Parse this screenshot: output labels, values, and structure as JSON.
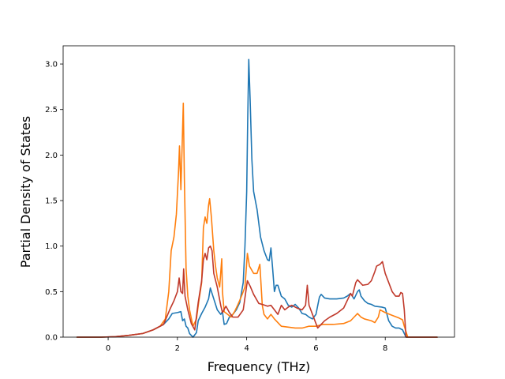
{
  "chart_data": {
    "type": "line",
    "title": "",
    "xlabel": "Frequency (THz)",
    "ylabel": "Partial Density of States",
    "xlim": [
      -1.3,
      10.0
    ],
    "ylim": [
      0.0,
      3.2
    ],
    "xticks": [
      0,
      2,
      4,
      6,
      8
    ],
    "yticks": [
      0.0,
      0.5,
      1.0,
      1.5,
      2.0,
      2.5,
      3.0
    ],
    "xtick_labels": [
      "0",
      "2",
      "4",
      "6",
      "8"
    ],
    "ytick_labels": [
      "0.0",
      "0.5",
      "1.0",
      "1.5",
      "2.0",
      "2.5",
      "3.0"
    ],
    "grid": false,
    "legend": "none",
    "series": [
      {
        "color": "#1f77b4",
        "points": [
          [
            -0.9,
            0.0
          ],
          [
            -0.2,
            0.0
          ],
          [
            0.2,
            0.005
          ],
          [
            0.6,
            0.02
          ],
          [
            1.0,
            0.04
          ],
          [
            1.3,
            0.08
          ],
          [
            1.6,
            0.14
          ],
          [
            1.75,
            0.2
          ],
          [
            1.85,
            0.26
          ],
          [
            2.0,
            0.27
          ],
          [
            2.1,
            0.28
          ],
          [
            2.15,
            0.18
          ],
          [
            2.2,
            0.2
          ],
          [
            2.25,
            0.12
          ],
          [
            2.3,
            0.1
          ],
          [
            2.35,
            0.04
          ],
          [
            2.45,
            0.0
          ],
          [
            2.55,
            0.05
          ],
          [
            2.6,
            0.18
          ],
          [
            2.7,
            0.26
          ],
          [
            2.8,
            0.33
          ],
          [
            2.9,
            0.42
          ],
          [
            2.95,
            0.54
          ],
          [
            3.05,
            0.42
          ],
          [
            3.15,
            0.3
          ],
          [
            3.25,
            0.25
          ],
          [
            3.3,
            0.28
          ],
          [
            3.35,
            0.14
          ],
          [
            3.42,
            0.15
          ],
          [
            3.5,
            0.22
          ],
          [
            3.6,
            0.25
          ],
          [
            3.7,
            0.3
          ],
          [
            3.8,
            0.38
          ],
          [
            3.9,
            0.6
          ],
          [
            3.95,
            1.0
          ],
          [
            4.0,
            1.6
          ],
          [
            4.03,
            2.4
          ],
          [
            4.06,
            3.05
          ],
          [
            4.1,
            2.6
          ],
          [
            4.15,
            1.95
          ],
          [
            4.2,
            1.6
          ],
          [
            4.3,
            1.4
          ],
          [
            4.4,
            1.1
          ],
          [
            4.5,
            0.95
          ],
          [
            4.6,
            0.85
          ],
          [
            4.65,
            0.84
          ],
          [
            4.7,
            0.98
          ],
          [
            4.75,
            0.75
          ],
          [
            4.8,
            0.5
          ],
          [
            4.85,
            0.57
          ],
          [
            4.9,
            0.57
          ],
          [
            5.0,
            0.45
          ],
          [
            5.1,
            0.42
          ],
          [
            5.2,
            0.35
          ],
          [
            5.3,
            0.33
          ],
          [
            5.4,
            0.36
          ],
          [
            5.5,
            0.32
          ],
          [
            5.6,
            0.26
          ],
          [
            5.7,
            0.25
          ],
          [
            5.8,
            0.22
          ],
          [
            5.9,
            0.2
          ],
          [
            6.0,
            0.25
          ],
          [
            6.1,
            0.44
          ],
          [
            6.15,
            0.47
          ],
          [
            6.25,
            0.43
          ],
          [
            6.4,
            0.42
          ],
          [
            6.6,
            0.42
          ],
          [
            6.8,
            0.43
          ],
          [
            6.9,
            0.45
          ],
          [
            7.0,
            0.48
          ],
          [
            7.1,
            0.42
          ],
          [
            7.2,
            0.5
          ],
          [
            7.25,
            0.52
          ],
          [
            7.3,
            0.45
          ],
          [
            7.4,
            0.4
          ],
          [
            7.5,
            0.37
          ],
          [
            7.6,
            0.36
          ],
          [
            7.7,
            0.34
          ],
          [
            7.9,
            0.33
          ],
          [
            8.0,
            0.32
          ],
          [
            8.1,
            0.18
          ],
          [
            8.2,
            0.12
          ],
          [
            8.3,
            0.1
          ],
          [
            8.4,
            0.1
          ],
          [
            8.5,
            0.08
          ],
          [
            8.6,
            0.0
          ],
          [
            9.5,
            0.0
          ]
        ]
      },
      {
        "color": "#ff7f0e",
        "points": [
          [
            -0.9,
            0.0
          ],
          [
            -0.2,
            0.0
          ],
          [
            0.2,
            0.005
          ],
          [
            0.6,
            0.02
          ],
          [
            1.0,
            0.04
          ],
          [
            1.3,
            0.08
          ],
          [
            1.5,
            0.12
          ],
          [
            1.65,
            0.2
          ],
          [
            1.75,
            0.5
          ],
          [
            1.82,
            0.95
          ],
          [
            1.9,
            1.1
          ],
          [
            1.97,
            1.35
          ],
          [
            2.03,
            1.8
          ],
          [
            2.06,
            2.1
          ],
          [
            2.1,
            1.62
          ],
          [
            2.14,
            2.15
          ],
          [
            2.17,
            2.57
          ],
          [
            2.2,
            1.75
          ],
          [
            2.25,
            0.75
          ],
          [
            2.3,
            0.45
          ],
          [
            2.35,
            0.3
          ],
          [
            2.45,
            0.12
          ],
          [
            2.55,
            0.2
          ],
          [
            2.62,
            0.4
          ],
          [
            2.7,
            0.6
          ],
          [
            2.75,
            1.2
          ],
          [
            2.8,
            1.32
          ],
          [
            2.85,
            1.25
          ],
          [
            2.9,
            1.45
          ],
          [
            2.93,
            1.52
          ],
          [
            2.98,
            1.32
          ],
          [
            3.05,
            0.95
          ],
          [
            3.1,
            0.78
          ],
          [
            3.15,
            0.65
          ],
          [
            3.22,
            0.55
          ],
          [
            3.28,
            0.86
          ],
          [
            3.3,
            0.5
          ],
          [
            3.35,
            0.28
          ],
          [
            3.45,
            0.25
          ],
          [
            3.55,
            0.22
          ],
          [
            3.65,
            0.28
          ],
          [
            3.75,
            0.36
          ],
          [
            3.85,
            0.45
          ],
          [
            3.95,
            0.55
          ],
          [
            4.02,
            0.92
          ],
          [
            4.08,
            0.78
          ],
          [
            4.2,
            0.7
          ],
          [
            4.3,
            0.7
          ],
          [
            4.38,
            0.8
          ],
          [
            4.45,
            0.35
          ],
          [
            4.5,
            0.25
          ],
          [
            4.6,
            0.2
          ],
          [
            4.7,
            0.25
          ],
          [
            4.8,
            0.2
          ],
          [
            4.9,
            0.16
          ],
          [
            5.0,
            0.12
          ],
          [
            5.2,
            0.11
          ],
          [
            5.4,
            0.1
          ],
          [
            5.6,
            0.1
          ],
          [
            5.8,
            0.12
          ],
          [
            6.0,
            0.12
          ],
          [
            6.2,
            0.14
          ],
          [
            6.5,
            0.14
          ],
          [
            6.8,
            0.15
          ],
          [
            7.0,
            0.18
          ],
          [
            7.1,
            0.22
          ],
          [
            7.2,
            0.26
          ],
          [
            7.3,
            0.22
          ],
          [
            7.4,
            0.2
          ],
          [
            7.6,
            0.18
          ],
          [
            7.7,
            0.16
          ],
          [
            7.8,
            0.22
          ],
          [
            7.85,
            0.3
          ],
          [
            8.0,
            0.27
          ],
          [
            8.2,
            0.24
          ],
          [
            8.4,
            0.21
          ],
          [
            8.5,
            0.19
          ],
          [
            8.55,
            0.12
          ],
          [
            8.65,
            0.0
          ],
          [
            9.5,
            0.0
          ]
        ]
      },
      {
        "color": "#c0392b",
        "points": [
          [
            -0.9,
            0.0
          ],
          [
            -0.2,
            0.0
          ],
          [
            0.2,
            0.005
          ],
          [
            0.6,
            0.02
          ],
          [
            1.0,
            0.04
          ],
          [
            1.3,
            0.08
          ],
          [
            1.6,
            0.14
          ],
          [
            1.8,
            0.32
          ],
          [
            1.9,
            0.4
          ],
          [
            2.0,
            0.5
          ],
          [
            2.05,
            0.65
          ],
          [
            2.1,
            0.5
          ],
          [
            2.15,
            0.48
          ],
          [
            2.18,
            0.75
          ],
          [
            2.22,
            0.45
          ],
          [
            2.3,
            0.3
          ],
          [
            2.4,
            0.15
          ],
          [
            2.5,
            0.08
          ],
          [
            2.6,
            0.38
          ],
          [
            2.7,
            0.62
          ],
          [
            2.75,
            0.85
          ],
          [
            2.8,
            0.92
          ],
          [
            2.85,
            0.85
          ],
          [
            2.9,
            0.98
          ],
          [
            2.95,
            1.0
          ],
          [
            3.0,
            0.95
          ],
          [
            3.05,
            0.7
          ],
          [
            3.15,
            0.55
          ],
          [
            3.25,
            0.35
          ],
          [
            3.3,
            0.27
          ],
          [
            3.4,
            0.34
          ],
          [
            3.5,
            0.27
          ],
          [
            3.6,
            0.22
          ],
          [
            3.75,
            0.22
          ],
          [
            3.9,
            0.3
          ],
          [
            4.02,
            0.62
          ],
          [
            4.1,
            0.56
          ],
          [
            4.2,
            0.47
          ],
          [
            4.35,
            0.37
          ],
          [
            4.45,
            0.36
          ],
          [
            4.6,
            0.34
          ],
          [
            4.7,
            0.35
          ],
          [
            4.8,
            0.3
          ],
          [
            4.9,
            0.25
          ],
          [
            5.0,
            0.35
          ],
          [
            5.1,
            0.3
          ],
          [
            5.2,
            0.33
          ],
          [
            5.3,
            0.35
          ],
          [
            5.45,
            0.32
          ],
          [
            5.6,
            0.3
          ],
          [
            5.7,
            0.35
          ],
          [
            5.75,
            0.57
          ],
          [
            5.8,
            0.35
          ],
          [
            5.9,
            0.25
          ],
          [
            6.0,
            0.15
          ],
          [
            6.05,
            0.1
          ],
          [
            6.15,
            0.14
          ],
          [
            6.25,
            0.18
          ],
          [
            6.4,
            0.22
          ],
          [
            6.6,
            0.26
          ],
          [
            6.8,
            0.32
          ],
          [
            7.0,
            0.48
          ],
          [
            7.05,
            0.45
          ],
          [
            7.15,
            0.6
          ],
          [
            7.2,
            0.63
          ],
          [
            7.35,
            0.57
          ],
          [
            7.5,
            0.58
          ],
          [
            7.6,
            0.62
          ],
          [
            7.7,
            0.72
          ],
          [
            7.75,
            0.78
          ],
          [
            7.85,
            0.8
          ],
          [
            7.92,
            0.83
          ],
          [
            8.0,
            0.7
          ],
          [
            8.1,
            0.6
          ],
          [
            8.2,
            0.5
          ],
          [
            8.3,
            0.45
          ],
          [
            8.4,
            0.45
          ],
          [
            8.45,
            0.49
          ],
          [
            8.5,
            0.48
          ],
          [
            8.55,
            0.3
          ],
          [
            8.6,
            0.0
          ],
          [
            9.5,
            0.0
          ]
        ]
      }
    ]
  }
}
